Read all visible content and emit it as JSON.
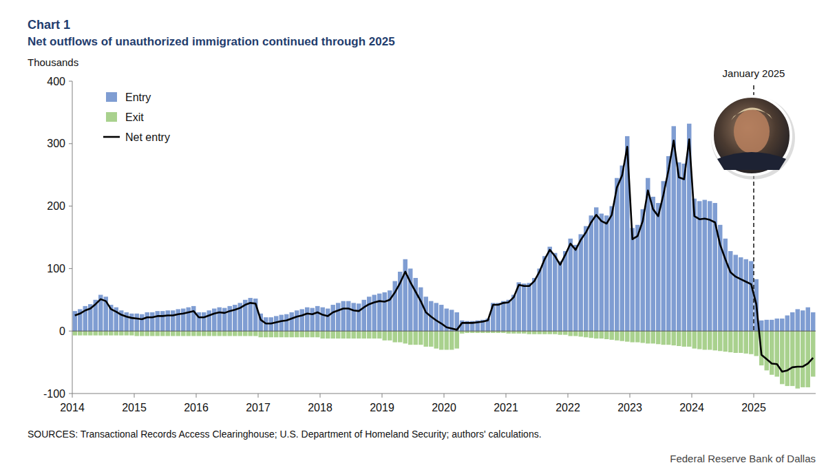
{
  "chart_data": {
    "type": "bar",
    "label": "Chart 1",
    "title": "Net outflows of unauthorized immigration continued through 2025",
    "ylabel": "Thousands",
    "source": "SOURCES: Transactional Records Access Clearinghouse; U.S. Department of Homeland Security; authors' calculations.",
    "credit": "Federal Reserve Bank of Dallas",
    "annotations": [
      {
        "text": "January 2025",
        "at": 132
      }
    ],
    "categories": [
      "2014",
      null,
      null,
      null,
      null,
      null,
      null,
      null,
      null,
      null,
      null,
      null,
      "2015",
      null,
      null,
      null,
      null,
      null,
      null,
      null,
      null,
      null,
      null,
      null,
      "2016",
      null,
      null,
      null,
      null,
      null,
      null,
      null,
      null,
      null,
      null,
      null,
      "2017",
      null,
      null,
      null,
      null,
      null,
      null,
      null,
      null,
      null,
      null,
      null,
      "2018",
      null,
      null,
      null,
      null,
      null,
      null,
      null,
      null,
      null,
      null,
      null,
      "2019",
      null,
      null,
      null,
      null,
      null,
      null,
      null,
      null,
      null,
      null,
      null,
      "2020",
      null,
      null,
      null,
      null,
      null,
      null,
      null,
      null,
      null,
      null,
      null,
      "2021",
      null,
      null,
      null,
      null,
      null,
      null,
      null,
      null,
      null,
      null,
      null,
      "2022",
      null,
      null,
      null,
      null,
      null,
      null,
      null,
      null,
      null,
      null,
      null,
      "2023",
      null,
      null,
      null,
      null,
      null,
      null,
      null,
      null,
      null,
      null,
      null,
      "2024",
      null,
      null,
      null,
      null,
      null,
      null,
      null,
      null,
      null,
      null,
      null,
      "2025",
      null,
      null,
      null,
      null,
      null,
      null,
      null,
      null,
      null,
      null,
      null
    ],
    "series": [
      {
        "name": "Entry",
        "type": "bar",
        "color": "#7f9dd2",
        "values": [
          32,
          35,
          40,
          43,
          50,
          58,
          55,
          42,
          38,
          33,
          30,
          28,
          28,
          27,
          30,
          30,
          32,
          32,
          33,
          33,
          35,
          36,
          38,
          40,
          30,
          30,
          33,
          36,
          38,
          37,
          40,
          42,
          45,
          50,
          53,
          52,
          28,
          22,
          22,
          24,
          26,
          27,
          30,
          33,
          35,
          38,
          37,
          40,
          38,
          36,
          42,
          45,
          48,
          48,
          45,
          44,
          50,
          55,
          58,
          60,
          62,
          65,
          80,
          95,
          115,
          100,
          85,
          70,
          55,
          48,
          45,
          42,
          36,
          34,
          30,
          17,
          16,
          16,
          17,
          18,
          20,
          45,
          45,
          48,
          50,
          58,
          78,
          76,
          77,
          85,
          100,
          120,
          135,
          125,
          112,
          128,
          148,
          138,
          155,
          168,
          185,
          198,
          188,
          185,
          200,
          245,
          265,
          312,
          165,
          170,
          195,
          245,
          215,
          205,
          240,
          280,
          328,
          270,
          268,
          332,
          212,
          208,
          210,
          208,
          205,
          170,
          148,
          128,
          122,
          118,
          115,
          112,
          83,
          17,
          18,
          18,
          20,
          20,
          25,
          30,
          35,
          33,
          38,
          30
        ]
      },
      {
        "name": "Exit",
        "type": "bar",
        "color": "#a9d18e",
        "values": [
          -7,
          -7,
          -7,
          -7,
          -7,
          -7,
          -7,
          -7,
          -7,
          -7,
          -7,
          -7,
          -8,
          -8,
          -8,
          -8,
          -8,
          -8,
          -8,
          -8,
          -8,
          -8,
          -8,
          -8,
          -8,
          -8,
          -8,
          -8,
          -8,
          -8,
          -8,
          -8,
          -8,
          -8,
          -8,
          -8,
          -10,
          -10,
          -10,
          -10,
          -10,
          -10,
          -10,
          -10,
          -10,
          -10,
          -10,
          -10,
          -12,
          -12,
          -12,
          -12,
          -12,
          -12,
          -12,
          -12,
          -12,
          -12,
          -12,
          -12,
          -15,
          -15,
          -18,
          -18,
          -20,
          -22,
          -22,
          -22,
          -25,
          -25,
          -28,
          -30,
          -30,
          -30,
          -28,
          -4,
          -3,
          -3,
          -3,
          -3,
          -3,
          -3,
          -3,
          -3,
          -4,
          -4,
          -4,
          -4,
          -5,
          -5,
          -5,
          -5,
          -5,
          -5,
          -6,
          -6,
          -8,
          -8,
          -9,
          -10,
          -11,
          -12,
          -12,
          -13,
          -14,
          -15,
          -16,
          -17,
          -18,
          -18,
          -19,
          -20,
          -20,
          -21,
          -22,
          -22,
          -23,
          -24,
          -25,
          -25,
          -28,
          -29,
          -30,
          -30,
          -31,
          -32,
          -33,
          -34,
          -35,
          -35,
          -36,
          -37,
          -40,
          -55,
          -63,
          -70,
          -73,
          -85,
          -88,
          -88,
          -92,
          -90,
          -90,
          -73
        ]
      },
      {
        "name": "Net entry",
        "type": "line",
        "color": "#000000",
        "line_style": "solid",
        "values": [
          25,
          28,
          33,
          36,
          43,
          51,
          48,
          35,
          31,
          26,
          23,
          21,
          20,
          19,
          22,
          22,
          24,
          24,
          25,
          25,
          27,
          28,
          30,
          32,
          22,
          22,
          25,
          28,
          30,
          29,
          32,
          34,
          37,
          42,
          45,
          44,
          18,
          12,
          12,
          14,
          16,
          17,
          20,
          23,
          25,
          28,
          27,
          30,
          26,
          24,
          30,
          33,
          36,
          36,
          33,
          32,
          38,
          43,
          46,
          48,
          47,
          50,
          62,
          77,
          95,
          78,
          63,
          48,
          30,
          23,
          17,
          12,
          6,
          4,
          2,
          13,
          13,
          13,
          14,
          15,
          17,
          42,
          42,
          45,
          46,
          54,
          74,
          72,
          72,
          80,
          95,
          115,
          130,
          120,
          106,
          122,
          140,
          130,
          146,
          158,
          174,
          186,
          176,
          172,
          186,
          230,
          249,
          295,
          147,
          152,
          176,
          225,
          195,
          184,
          218,
          258,
          305,
          246,
          243,
          307,
          184,
          179,
          180,
          178,
          174,
          138,
          115,
          94,
          87,
          83,
          79,
          75,
          43,
          -38,
          -45,
          -52,
          -53,
          -65,
          -63,
          -58,
          -57,
          -57,
          -52,
          -43
        ]
      }
    ],
    "ylim": [
      -100,
      400
    ],
    "yticks": [
      -100,
      0,
      100,
      200,
      300,
      400
    ],
    "grid": false,
    "stacked": true,
    "legend": "upper left"
  }
}
